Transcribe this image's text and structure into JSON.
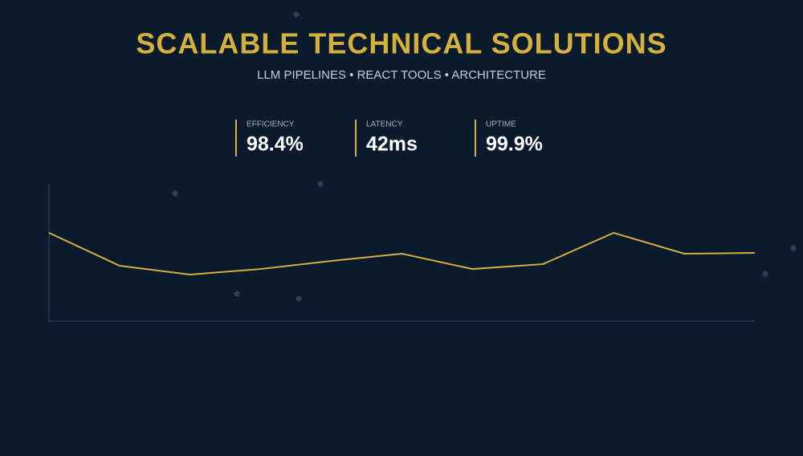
{
  "header": {
    "title": "SCALABLE TECHNICAL SOLUTIONS",
    "subtitle": "LLM PIPELINES • REACT TOOLS • ARCHITECTURE"
  },
  "stats": [
    {
      "label": "EFFICIENCY",
      "value": "98.4%"
    },
    {
      "label": "LATENCY",
      "value": "42ms"
    },
    {
      "label": "UPTIME",
      "value": "99.9%"
    }
  ],
  "chart_data": {
    "type": "line",
    "values": [
      64.7,
      40.6,
      34.1,
      38.2,
      44.1,
      49.4,
      38.2,
      41.8,
      64.7,
      49.4,
      50
    ],
    "color": "#d4b13f",
    "ylim": [
      0,
      100
    ]
  }
}
